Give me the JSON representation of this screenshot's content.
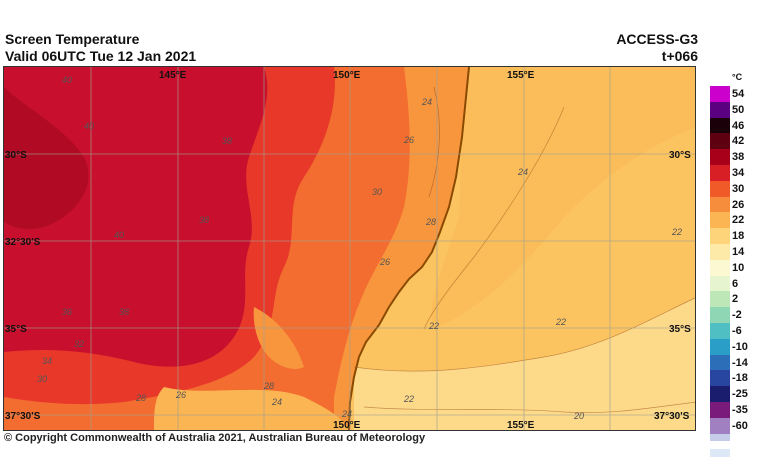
{
  "header": {
    "title": "Screen Temperature",
    "valid": "Valid 06UTC Tue 12 Jan 2021",
    "model": "ACCESS-G3",
    "lead": "t+066"
  },
  "footer": {
    "copyright": "© Copyright Commonwealth of Australia 2021, Australian Bureau of Meteorology"
  },
  "map": {
    "lon_labels": [
      "145°E",
      "150°E",
      "155°E"
    ],
    "lat_labels": [
      "30°S",
      "32°30'S",
      "35°S",
      "37°30'S"
    ],
    "contour_labels": [
      "40",
      "40",
      "38",
      "38",
      "40",
      "38",
      "36",
      "34",
      "32",
      "30",
      "28",
      "26",
      "24",
      "24",
      "26",
      "22",
      "22",
      "22",
      "22",
      "20",
      "24",
      "28",
      "26",
      "24",
      "30",
      "28"
    ],
    "colors": {
      "ocean_warm": "#fcc460",
      "ocean_cool": "#fdd98a",
      "inland_hot": "#c8102e",
      "inland_warm": "#e8382a",
      "mid": "#f26d2f",
      "coastal": "#f8963e",
      "coastline": "#8a4a00",
      "grid": "#a0a090"
    }
  },
  "legend": {
    "unit": "°C",
    "entries": [
      {
        "label": "54",
        "color": "#cc00cc"
      },
      {
        "label": "50",
        "color": "#5a0080"
      },
      {
        "label": "46",
        "color": "#1a0008"
      },
      {
        "label": "42",
        "color": "#5e0010"
      },
      {
        "label": "38",
        "color": "#a8001a"
      },
      {
        "label": "34",
        "color": "#d81f26"
      },
      {
        "label": "30",
        "color": "#f05a28"
      },
      {
        "label": "26",
        "color": "#f68d3c"
      },
      {
        "label": "22",
        "color": "#fbb552"
      },
      {
        "label": "18",
        "color": "#fdd47a"
      },
      {
        "label": "14",
        "color": "#fde9a8"
      },
      {
        "label": "10",
        "color": "#fbf8d2"
      },
      {
        "label": "6",
        "color": "#e6f5d0"
      },
      {
        "label": "2",
        "color": "#bde7b6"
      },
      {
        "label": "-2",
        "color": "#8ed6b4"
      },
      {
        "label": "-6",
        "color": "#4fbfc3"
      },
      {
        "label": "-10",
        "color": "#2a9ec6"
      },
      {
        "label": "-14",
        "color": "#2c6fb8"
      },
      {
        "label": "-18",
        "color": "#2846a0"
      },
      {
        "label": "-25",
        "color": "#1a1d6e"
      },
      {
        "label": "-35",
        "color": "#7a1a7a"
      },
      {
        "label": "-60",
        "color": "#a080c0"
      }
    ],
    "extra_colors": [
      "#c6cde8",
      "#dde8f7"
    ]
  }
}
